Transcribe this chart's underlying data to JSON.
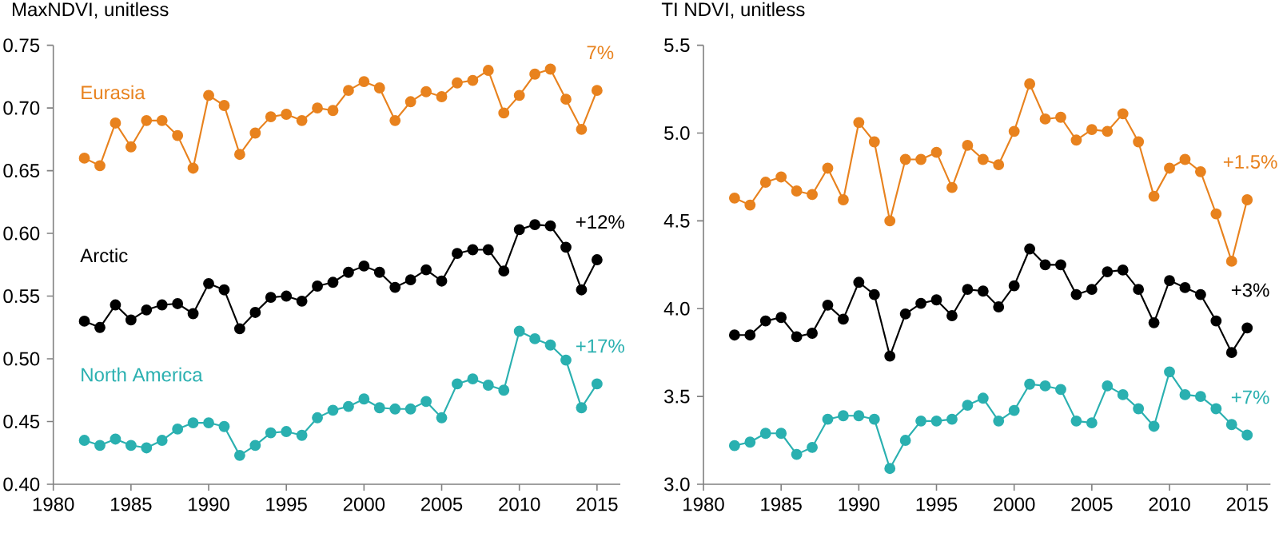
{
  "chart_data": [
    {
      "type": "line",
      "ylabel": "MaxNDVI, unitless",
      "marker": "circle",
      "x": [
        1982,
        1983,
        1984,
        1985,
        1986,
        1987,
        1988,
        1989,
        1990,
        1991,
        1992,
        1993,
        1994,
        1995,
        1996,
        1997,
        1998,
        1999,
        2000,
        2001,
        2002,
        2003,
        2004,
        2005,
        2006,
        2007,
        2008,
        2009,
        2010,
        2011,
        2012,
        2013,
        2014,
        2015
      ],
      "series": [
        {
          "name": "Eurasia",
          "color": "#e8821e",
          "values": [
            0.66,
            0.654,
            0.688,
            0.669,
            0.69,
            0.69,
            0.678,
            0.652,
            0.71,
            0.702,
            0.663,
            0.68,
            0.693,
            0.695,
            0.69,
            0.7,
            0.698,
            0.714,
            0.721,
            0.716,
            0.69,
            0.705,
            0.713,
            0.709,
            0.72,
            0.722,
            0.73,
            0.696,
            0.71,
            0.727,
            0.731,
            0.707,
            0.683,
            0.714
          ]
        },
        {
          "name": "Arctic",
          "color": "#000000",
          "values": [
            0.53,
            0.525,
            0.543,
            0.531,
            0.539,
            0.543,
            0.544,
            0.536,
            0.56,
            0.555,
            0.524,
            0.537,
            0.549,
            0.55,
            0.546,
            0.558,
            0.561,
            0.569,
            0.574,
            0.569,
            0.557,
            0.563,
            0.571,
            0.562,
            0.584,
            0.587,
            0.587,
            0.57,
            0.603,
            0.607,
            0.606,
            0.589,
            0.555,
            0.579
          ]
        },
        {
          "name": "North America",
          "color": "#2ab0b0",
          "values": [
            0.435,
            0.431,
            0.436,
            0.431,
            0.429,
            0.435,
            0.444,
            0.449,
            0.449,
            0.446,
            0.423,
            0.431,
            0.441,
            0.442,
            0.439,
            0.453,
            0.459,
            0.462,
            0.468,
            0.461,
            0.46,
            0.46,
            0.466,
            0.453,
            0.48,
            0.484,
            0.479,
            0.475,
            0.522,
            0.516,
            0.511,
            0.499,
            0.461,
            0.48
          ]
        }
      ],
      "xlim": [
        1980,
        2016.5
      ],
      "ylim": [
        0.4,
        0.75
      ],
      "xticks": [
        1980,
        1985,
        1990,
        1995,
        2000,
        2005,
        2010,
        2015
      ],
      "yticks": [
        {
          "value": 0.4,
          "label": "0.40"
        },
        {
          "value": 0.45,
          "label": "0.45"
        },
        {
          "value": 0.5,
          "label": "0.50"
        },
        {
          "value": 0.55,
          "label": "0.55"
        },
        {
          "value": 0.6,
          "label": "0.60"
        },
        {
          "value": 0.65,
          "label": "0.65"
        },
        {
          "value": 0.7,
          "label": "0.70"
        },
        {
          "value": 0.75,
          "label": "0.75"
        }
      ],
      "annotations": [
        "7%",
        "+12%",
        "+17%"
      ]
    },
    {
      "type": "line",
      "ylabel": "TI NDVI, unitless",
      "marker": "circle",
      "x": [
        1982,
        1983,
        1984,
        1985,
        1986,
        1987,
        1988,
        1989,
        1990,
        1991,
        1992,
        1993,
        1994,
        1995,
        1996,
        1997,
        1998,
        1999,
        2000,
        2001,
        2002,
        2003,
        2004,
        2005,
        2006,
        2007,
        2008,
        2009,
        2010,
        2011,
        2012,
        2013,
        2014,
        2015
      ],
      "series": [
        {
          "color": "#e8821e",
          "values": [
            4.63,
            4.59,
            4.72,
            4.75,
            4.67,
            4.65,
            4.8,
            4.62,
            5.06,
            4.95,
            4.5,
            4.85,
            4.85,
            4.89,
            4.69,
            4.93,
            4.85,
            4.82,
            5.01,
            5.28,
            5.08,
            5.09,
            4.96,
            5.02,
            5.01,
            5.11,
            4.95,
            4.64,
            4.8,
            4.85,
            4.78,
            4.54,
            4.27,
            4.62
          ]
        },
        {
          "color": "#000000",
          "values": [
            3.85,
            3.85,
            3.93,
            3.95,
            3.84,
            3.86,
            4.02,
            3.94,
            4.15,
            4.08,
            3.73,
            3.97,
            4.03,
            4.05,
            3.96,
            4.11,
            4.1,
            4.01,
            4.13,
            4.34,
            4.25,
            4.25,
            4.08,
            4.11,
            4.21,
            4.22,
            4.11,
            3.92,
            4.16,
            4.12,
            4.08,
            3.93,
            3.75,
            3.89
          ]
        },
        {
          "color": "#2ab0b0",
          "values": [
            3.22,
            3.24,
            3.29,
            3.29,
            3.17,
            3.21,
            3.37,
            3.39,
            3.39,
            3.37,
            3.09,
            3.25,
            3.36,
            3.36,
            3.37,
            3.45,
            3.49,
            3.36,
            3.42,
            3.57,
            3.56,
            3.54,
            3.36,
            3.35,
            3.56,
            3.51,
            3.43,
            3.33,
            3.64,
            3.51,
            3.5,
            3.43,
            3.34,
            3.28
          ]
        }
      ],
      "xlim": [
        1980,
        2016.5
      ],
      "ylim": [
        3.0,
        5.5
      ],
      "xticks": [
        1980,
        1985,
        1990,
        1995,
        2000,
        2005,
        2010,
        2015
      ],
      "yticks": [
        {
          "value": 3.0,
          "label": "3.0"
        },
        {
          "value": 3.5,
          "label": "3.5"
        },
        {
          "value": 4.0,
          "label": "4.0"
        },
        {
          "value": 4.5,
          "label": "4.5"
        },
        {
          "value": 5.0,
          "label": "5.0"
        },
        {
          "value": 5.5,
          "label": "5.5"
        }
      ],
      "annotations": [
        "+1.5%",
        "+3%",
        "+7%"
      ]
    }
  ]
}
